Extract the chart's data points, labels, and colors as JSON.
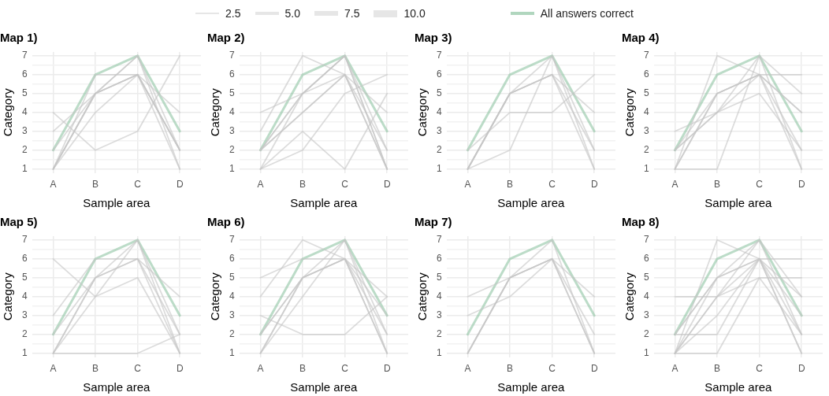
{
  "chart_data": [
    {
      "type": "line",
      "title": "Map 1)",
      "xlabel": "Sample area",
      "ylabel": "Category",
      "categories": [
        "A",
        "B",
        "C",
        "D"
      ],
      "ylim": [
        0.8,
        7.2
      ],
      "yticks": [
        1,
        {
          "value": 1.5,
          "label": null
        },
        2,
        {
          "value": 2.5,
          "label": null
        },
        3,
        {
          "value": 3.5,
          "label": null
        },
        4,
        {
          "value": 4.5,
          "label": null
        },
        5,
        {
          "value": 5.5,
          "label": null
        },
        6,
        {
          "value": 6.5,
          "label": null
        },
        7
      ],
      "grid": true,
      "legend": "top",
      "size_legend": [
        "2.5",
        "5.0",
        "7.5",
        "10.0"
      ],
      "series": [
        {
          "color": "#c4c4c4",
          "values": [
            1,
            5,
            6,
            1
          ]
        },
        {
          "color": "#c4c4c4",
          "values": [
            1,
            5,
            6,
            2
          ]
        },
        {
          "color": "#c4c4c4",
          "values": [
            1,
            6,
            6,
            2
          ]
        },
        {
          "color": "#c4c4c4",
          "values": [
            1,
            5,
            7,
            1
          ]
        },
        {
          "color": "#c4c4c4",
          "values": [
            2,
            5,
            6,
            2
          ]
        },
        {
          "color": "#c4c4c4",
          "values": [
            4,
            2,
            3,
            7
          ]
        },
        {
          "color": "#c4c4c4",
          "values": [
            1,
            4,
            6,
            4
          ]
        },
        {
          "color": "#c4c4c4",
          "values": [
            3,
            5,
            7,
            2
          ]
        },
        {
          "name": "All answers correct",
          "color": "#8fc4a3",
          "values": [
            2,
            6,
            7,
            3
          ]
        }
      ]
    },
    {
      "type": "line",
      "title": "Map 2)",
      "xlabel": "Sample area",
      "ylabel": "Category",
      "categories": [
        "A",
        "B",
        "C",
        "D"
      ],
      "ylim": [
        0.8,
        7.2
      ],
      "yticks": [
        1,
        {
          "value": 1.5,
          "label": null
        },
        2,
        {
          "value": 2.5,
          "label": null
        },
        3,
        {
          "value": 3.5,
          "label": null
        },
        4,
        {
          "value": 4.5,
          "label": null
        },
        5,
        {
          "value": 5.5,
          "label": null
        },
        6,
        {
          "value": 6.5,
          "label": null
        },
        7
      ],
      "grid": true,
      "series": [
        {
          "color": "#c4c4c4",
          "values": [
            2,
            5,
            6,
            1
          ]
        },
        {
          "color": "#c4c4c4",
          "values": [
            2,
            4,
            6,
            2
          ]
        },
        {
          "color": "#c4c4c4",
          "values": [
            1,
            5,
            7,
            1
          ]
        },
        {
          "color": "#c4c4c4",
          "values": [
            2,
            5,
            7,
            2
          ]
        },
        {
          "color": "#c4c4c4",
          "values": [
            2,
            4,
            6,
            1
          ]
        },
        {
          "color": "#c4c4c4",
          "values": [
            3,
            7,
            6,
            4
          ]
        },
        {
          "color": "#c4c4c4",
          "values": [
            4,
            5,
            7,
            1
          ]
        },
        {
          "color": "#c4c4c4",
          "values": [
            1,
            2,
            5,
            6
          ]
        },
        {
          "color": "#c4c4c4",
          "values": [
            1,
            3,
            1,
            5
          ]
        },
        {
          "color": "#8fc4a3",
          "values": [
            2,
            6,
            7,
            3
          ]
        }
      ]
    },
    {
      "type": "line",
      "title": "Map 3)",
      "xlabel": "Sample area",
      "ylabel": "Category",
      "categories": [
        "A",
        "B",
        "C",
        "D"
      ],
      "ylim": [
        0.8,
        7.2
      ],
      "yticks": [
        1,
        {
          "value": 1.5,
          "label": null
        },
        2,
        {
          "value": 2.5,
          "label": null
        },
        3,
        {
          "value": 3.5,
          "label": null
        },
        4,
        {
          "value": 4.5,
          "label": null
        },
        5,
        {
          "value": 5.5,
          "label": null
        },
        6,
        {
          "value": 6.5,
          "label": null
        },
        7
      ],
      "grid": true,
      "series": [
        {
          "color": "#c4c4c4",
          "values": [
            1,
            5,
            6,
            4
          ]
        },
        {
          "color": "#c4c4c4",
          "values": [
            1,
            5,
            6,
            1
          ]
        },
        {
          "color": "#c4c4c4",
          "values": [
            1,
            5,
            7,
            1
          ]
        },
        {
          "color": "#c4c4c4",
          "values": [
            1,
            5,
            6,
            2
          ]
        },
        {
          "color": "#c4c4c4",
          "values": [
            1,
            2,
            7,
            2
          ]
        },
        {
          "color": "#c4c4c4",
          "values": [
            2,
            4,
            4,
            6
          ]
        },
        {
          "color": "#8fc4a3",
          "values": [
            2,
            6,
            7,
            3
          ]
        }
      ]
    },
    {
      "type": "line",
      "title": "Map 4)",
      "xlabel": "Sample area",
      "ylabel": "Category",
      "categories": [
        "A",
        "B",
        "C",
        "D"
      ],
      "ylim": [
        0.8,
        7.2
      ],
      "yticks": [
        1,
        {
          "value": 1.5,
          "label": null
        },
        2,
        {
          "value": 2.5,
          "label": null
        },
        3,
        {
          "value": 3.5,
          "label": null
        },
        4,
        {
          "value": 4.5,
          "label": null
        },
        5,
        {
          "value": 5.5,
          "label": null
        },
        6,
        {
          "value": 6.5,
          "label": null
        },
        7
      ],
      "grid": true,
      "series": [
        {
          "color": "#c4c4c4",
          "values": [
            1,
            5,
            6,
            1
          ]
        },
        {
          "color": "#c4c4c4",
          "values": [
            2,
            4,
            5,
            2
          ]
        },
        {
          "color": "#c4c4c4",
          "values": [
            1,
            5,
            6,
            4
          ]
        },
        {
          "color": "#c4c4c4",
          "values": [
            2,
            5,
            6,
            2
          ]
        },
        {
          "color": "#c4c4c4",
          "values": [
            2,
            4,
            6,
            4
          ]
        },
        {
          "color": "#c4c4c4",
          "values": [
            1,
            1,
            7,
            1
          ]
        },
        {
          "color": "#c4c4c4",
          "values": [
            1,
            7,
            6,
            6
          ]
        },
        {
          "color": "#c4c4c4",
          "values": [
            3,
            4,
            7,
            5
          ]
        },
        {
          "color": "#8fc4a3",
          "values": [
            2,
            6,
            7,
            3
          ]
        }
      ]
    },
    {
      "type": "line",
      "title": "Map 5)",
      "xlabel": "Sample area",
      "ylabel": "Category",
      "categories": [
        "A",
        "B",
        "C",
        "D"
      ],
      "ylim": [
        0.8,
        7.2
      ],
      "yticks": [
        1,
        {
          "value": 1.5,
          "label": null
        },
        2,
        {
          "value": 2.5,
          "label": null
        },
        3,
        {
          "value": 3.5,
          "label": null
        },
        4,
        {
          "value": 4.5,
          "label": null
        },
        5,
        {
          "value": 5.5,
          "label": null
        },
        6,
        {
          "value": 6.5,
          "label": null
        },
        7
      ],
      "grid": true,
      "series": [
        {
          "color": "#c4c4c4",
          "values": [
            1,
            5,
            6,
            2
          ]
        },
        {
          "color": "#c4c4c4",
          "values": [
            1,
            5,
            7,
            1
          ]
        },
        {
          "color": "#c4c4c4",
          "values": [
            2,
            5,
            6,
            1
          ]
        },
        {
          "color": "#c4c4c4",
          "values": [
            1,
            4,
            7,
            2
          ]
        },
        {
          "color": "#c4c4c4",
          "values": [
            3,
            6,
            6,
            4
          ]
        },
        {
          "color": "#c4c4c4",
          "values": [
            6,
            4,
            5,
            1
          ]
        },
        {
          "color": "#c4c4c4",
          "values": [
            1,
            1,
            1,
            2
          ]
        },
        {
          "color": "#8fc4a3",
          "values": [
            2,
            6,
            7,
            3
          ]
        }
      ]
    },
    {
      "type": "line",
      "title": "Map 6)",
      "xlabel": "Sample area",
      "ylabel": "Category",
      "categories": [
        "A",
        "B",
        "C",
        "D"
      ],
      "ylim": [
        0.8,
        7.2
      ],
      "yticks": [
        1,
        {
          "value": 1.5,
          "label": null
        },
        2,
        {
          "value": 2.5,
          "label": null
        },
        3,
        {
          "value": 3.5,
          "label": null
        },
        4,
        {
          "value": 4.5,
          "label": null
        },
        5,
        {
          "value": 5.5,
          "label": null
        },
        6,
        {
          "value": 6.5,
          "label": null
        },
        7
      ],
      "grid": true,
      "series": [
        {
          "color": "#c4c4c4",
          "values": [
            1,
            5,
            6,
            1
          ]
        },
        {
          "color": "#c4c4c4",
          "values": [
            2,
            5,
            6,
            2
          ]
        },
        {
          "color": "#c4c4c4",
          "values": [
            1,
            4,
            7,
            1
          ]
        },
        {
          "color": "#c4c4c4",
          "values": [
            2,
            5,
            7,
            2
          ]
        },
        {
          "color": "#c4c4c4",
          "values": [
            1,
            5,
            6,
            4
          ]
        },
        {
          "color": "#c4c4c4",
          "values": [
            4,
            7,
            6,
            3
          ]
        },
        {
          "color": "#c4c4c4",
          "values": [
            5,
            6,
            6,
            1
          ]
        },
        {
          "color": "#c4c4c4",
          "values": [
            3,
            2,
            2,
            4
          ]
        },
        {
          "color": "#8fc4a3",
          "values": [
            2,
            6,
            7,
            3
          ]
        }
      ]
    },
    {
      "type": "line",
      "title": "Map 7)",
      "xlabel": "Sample area",
      "ylabel": "Category",
      "categories": [
        "A",
        "B",
        "C",
        "D"
      ],
      "ylim": [
        0.8,
        7.2
      ],
      "yticks": [
        1,
        {
          "value": 1.5,
          "label": null
        },
        2,
        {
          "value": 2.5,
          "label": null
        },
        3,
        {
          "value": 3.5,
          "label": null
        },
        4,
        {
          "value": 4.5,
          "label": null
        },
        5,
        {
          "value": 5.5,
          "label": null
        },
        6,
        {
          "value": 6.5,
          "label": null
        },
        7
      ],
      "grid": true,
      "series": [
        {
          "color": "#c4c4c4",
          "values": [
            1,
            5,
            6,
            2
          ]
        },
        {
          "color": "#c4c4c4",
          "values": [
            1,
            5,
            7,
            1
          ]
        },
        {
          "color": "#c4c4c4",
          "values": [
            1,
            5,
            6,
            1
          ]
        },
        {
          "color": "#c4c4c4",
          "values": [
            3,
            4,
            6,
            4
          ]
        },
        {
          "color": "#c4c4c4",
          "values": [
            4,
            5,
            6,
            1
          ]
        },
        {
          "color": "#8fc4a3",
          "values": [
            2,
            6,
            7,
            3
          ]
        }
      ]
    },
    {
      "type": "line",
      "title": "Map 8)",
      "xlabel": "Sample area",
      "ylabel": "Category",
      "categories": [
        "A",
        "B",
        "C",
        "D"
      ],
      "ylim": [
        0.8,
        7.2
      ],
      "yticks": [
        1,
        {
          "value": 1.5,
          "label": null
        },
        2,
        {
          "value": 2.5,
          "label": null
        },
        3,
        {
          "value": 3.5,
          "label": null
        },
        4,
        {
          "value": 4.5,
          "label": null
        },
        5,
        {
          "value": 5.5,
          "label": null
        },
        6,
        {
          "value": 6.5,
          "label": null
        },
        7
      ],
      "grid": true,
      "series": [
        {
          "color": "#c4c4c4",
          "values": [
            1,
            4,
            6,
            2
          ]
        },
        {
          "color": "#c4c4c4",
          "values": [
            2,
            5,
            6,
            1
          ]
        },
        {
          "color": "#c4c4c4",
          "values": [
            1,
            5,
            6,
            4
          ]
        },
        {
          "color": "#c4c4c4",
          "values": [
            2,
            5,
            7,
            2
          ]
        },
        {
          "color": "#c4c4c4",
          "values": [
            1,
            3,
            6,
            3
          ]
        },
        {
          "color": "#c4c4c4",
          "values": [
            1,
            4,
            5,
            5
          ]
        },
        {
          "color": "#c4c4c4",
          "values": [
            2,
            2,
            6,
            1
          ]
        },
        {
          "color": "#c4c4c4",
          "values": [
            1,
            7,
            6,
            6
          ]
        },
        {
          "color": "#c4c4c4",
          "values": [
            4,
            4,
            7,
            4
          ]
        },
        {
          "color": "#c4c4c4",
          "values": [
            1,
            1,
            5,
            2
          ]
        },
        {
          "color": "#8fc4a3",
          "values": [
            2,
            6,
            7,
            3
          ]
        }
      ]
    }
  ]
}
